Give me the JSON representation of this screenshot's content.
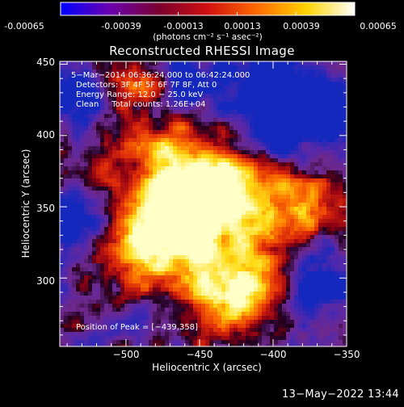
{
  "colorbar": {
    "tick_labels": [
      "-0.00065",
      "-0.00039",
      "-0.00013",
      "0.00013",
      "0.00039",
      "0.00065"
    ],
    "tick_values": [
      -0.00065,
      -0.00039,
      -0.00013,
      0.00013,
      0.00039,
      0.00065
    ],
    "range": [
      -0.00065,
      0.00065
    ],
    "unit_label": "(photons cm⁻² s⁻¹ asec⁻²)",
    "colors": [
      "#0000ff",
      "#6a00b0",
      "#7a0030",
      "#d01010",
      "#ff6a00",
      "#ffd200",
      "#ffffff"
    ]
  },
  "chart_data": {
    "type": "heatmap",
    "title": "Reconstructed RHESSI Image",
    "xlabel": "Heliocentric X (arcsec)",
    "ylabel": "Heliocentric Y (arcsec)",
    "xlim": [
      -545,
      -350
    ],
    "ylim": [
      252,
      452
    ],
    "xticks": [
      -500,
      -450,
      -400,
      -350
    ],
    "yticks": [
      300,
      350,
      400,
      450
    ],
    "xtick_labels": [
      "−500",
      "−450",
      "−400",
      "−350"
    ],
    "ytick_labels": [
      "300",
      "350",
      "400",
      "450"
    ],
    "annotations": [
      "5−Mar−2014 06:36:24.000 to 06:42:24.000",
      "Detectors: 3F 4F 5F 6F 7F 8F, Att 0",
      "Energy Range: 12.0 − 25.0 keV",
      "Clean     Total counts: 1.26E+04"
    ],
    "peak_label": "Position of Peak = [−439,358]",
    "peak": [
      -439,
      358
    ],
    "value_range": [
      -0.00065,
      0.00065
    ],
    "grid": false
  },
  "footer": {
    "timestamp": "13−May−2022 13:44"
  }
}
